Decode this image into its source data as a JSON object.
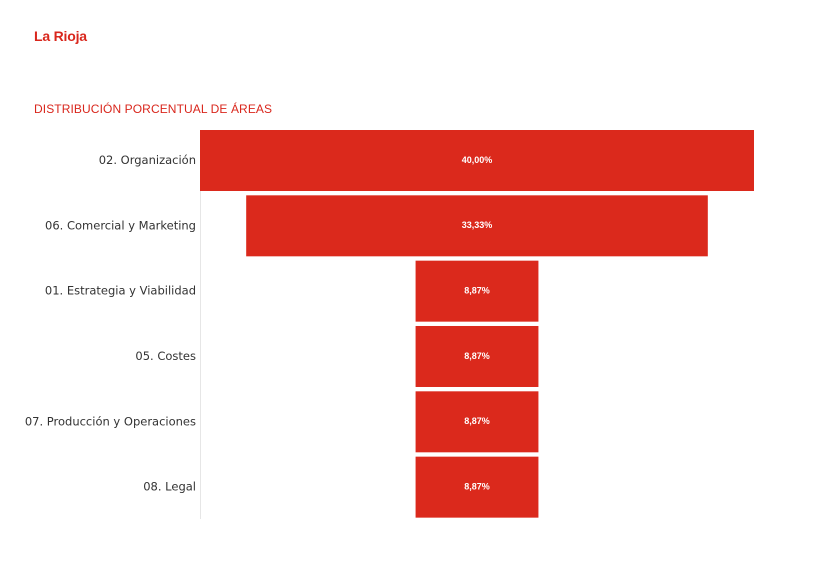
{
  "header": {
    "title": "La Rioja"
  },
  "colors": {
    "accent": "#d9261c",
    "bar": "#db291c",
    "axis_line": "#e6e6e6"
  },
  "chart_data": {
    "type": "funnel",
    "title": "DISTRIBUCIÓN PORCENTUAL DE ÁREAS",
    "categories": [
      "02. Organización",
      "06. Comercial y Marketing",
      "01. Estrategia y Viabilidad",
      "05. Costes",
      "07. Producción y Operaciones",
      "08. Legal"
    ],
    "values": [
      40.0,
      33.33,
      8.87,
      8.87,
      8.87,
      8.87
    ],
    "value_labels": [
      "40,00%",
      "33,33%",
      "8,87%",
      "8,87%",
      "8,87%",
      "8,87%"
    ],
    "unit": "%"
  }
}
